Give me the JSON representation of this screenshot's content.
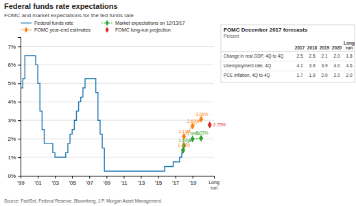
{
  "chart_data": [
    {
      "type": "line",
      "title": "Federal funds rate expectations",
      "subtitle": "FOMC and market expectations for the fed funds rate",
      "source": "Source: FactSet, Federal Reserve, Bloomberg, J.P. Morgan Asset Management.",
      "xlim": [
        1999,
        2021.5
      ],
      "ylim": [
        0,
        0.075
      ],
      "xticks": [
        {
          "value": 1999,
          "label": "'99"
        },
        {
          "value": 2001,
          "label": "'01"
        },
        {
          "value": 2003,
          "label": "'03"
        },
        {
          "value": 2005,
          "label": "'05"
        },
        {
          "value": 2007,
          "label": "'07"
        },
        {
          "value": 2009,
          "label": "'09"
        },
        {
          "value": 2011,
          "label": "'11"
        },
        {
          "value": 2013,
          "label": "'13"
        },
        {
          "value": 2015,
          "label": "'15"
        },
        {
          "value": 2017,
          "label": "'17"
        },
        {
          "value": 2019,
          "label": "'19"
        }
      ],
      "yticks": [
        {
          "value": 0,
          "label": "0%"
        },
        {
          "value": 0.01,
          "label": "1%"
        },
        {
          "value": 0.02,
          "label": "2%"
        },
        {
          "value": 0.03,
          "label": "3%"
        },
        {
          "value": 0.04,
          "label": "4%"
        },
        {
          "value": 0.05,
          "label": "5%"
        },
        {
          "value": 0.06,
          "label": "6%"
        },
        {
          "value": 0.07,
          "label": "7%"
        }
      ],
      "grid": true,
      "legend": "upper left",
      "data_labels": true,
      "annotations": [
        {
          "text": "Long\nrun",
          "x": 2021.5
        }
      ],
      "series": [
        {
          "name": "Federal funds rate",
          "type": "step",
          "line_style": "solid",
          "x": [
            1999,
            1999.25,
            1999.5,
            1999.75,
            2000,
            2000.25,
            2000.5,
            2000.75,
            2001,
            2001.25,
            2001.5,
            2001.75,
            2002,
            2002.25,
            2002.5,
            2002.75,
            2003,
            2003.25,
            2003.5,
            2003.75,
            2004,
            2004.25,
            2004.5,
            2004.75,
            2005,
            2005.25,
            2005.5,
            2005.75,
            2006,
            2006.25,
            2006.5,
            2006.75,
            2007,
            2007.25,
            2007.5,
            2007.75,
            2008,
            2008.25,
            2008.5,
            2008.75,
            2009,
            2009.25,
            2009.5,
            2009.75,
            2010,
            2010.25,
            2010.5,
            2010.75,
            2011,
            2011.25,
            2011.5,
            2011.75,
            2012,
            2012.25,
            2012.5,
            2012.75,
            2013,
            2013.25,
            2013.5,
            2013.75,
            2014,
            2014.25,
            2014.5,
            2014.75,
            2015,
            2015.25,
            2015.5,
            2015.75,
            2016,
            2016.25,
            2016.5,
            2016.75,
            2017,
            2017.25,
            2017.5,
            2017.75,
            2017.9
          ],
          "values": [
            0.0475,
            0.0525,
            0.065,
            0.065,
            0.065,
            0.065,
            0.065,
            0.06,
            0.05,
            0.035,
            0.025,
            0.0175,
            0.0175,
            0.0175,
            0.0175,
            0.0125,
            0.01,
            0.01,
            0.01,
            0.01,
            0.01,
            0.0125,
            0.0175,
            0.0225,
            0.025,
            0.03,
            0.035,
            0.04,
            0.0425,
            0.0475,
            0.0525,
            0.0525,
            0.0525,
            0.0525,
            0.0525,
            0.045,
            0.03,
            0.0225,
            0.015,
            0.0025,
            0.0025,
            0.0025,
            0.0025,
            0.0025,
            0.0025,
            0.0025,
            0.0025,
            0.0025,
            0.0025,
            0.0025,
            0.0025,
            0.0025,
            0.0025,
            0.0025,
            0.0025,
            0.0025,
            0.0025,
            0.0025,
            0.0025,
            0.0025,
            0.0025,
            0.0025,
            0.0025,
            0.0025,
            0.0025,
            0.0025,
            0.0025,
            0.005,
            0.005,
            0.005,
            0.005,
            0.0075,
            0.0075,
            0.0075,
            0.01,
            0.0125,
            0.0138
          ]
        },
        {
          "name": "FOMC year-end estimates",
          "type": "line",
          "line_style": "dotted",
          "marker": "diamond",
          "x": [
            2017.9,
            2018,
            2019,
            2020
          ],
          "values": [
            0.0138,
            0.0213,
            0.0269,
            0.0306
          ],
          "value_labels": [
            "1.38%",
            "2.13%",
            "2.69%",
            "3.06%"
          ]
        },
        {
          "name": "Market expectations on 12/13/17",
          "type": "line",
          "line_style": "dotted",
          "marker": "diamond",
          "x": [
            2017.9,
            2018,
            2019,
            2020
          ],
          "values": [
            0.0138,
            0.0163,
            0.0199,
            0.0203
          ],
          "value_labels": [
            null,
            "1.63%",
            "1.99%",
            "2.03%"
          ]
        },
        {
          "name": "FOMC long-run projection",
          "type": "scatter",
          "marker": "diamond",
          "x": [
            2021
          ],
          "values": [
            0.0275
          ],
          "value_labels": [
            "2.75%"
          ]
        }
      ]
    },
    {
      "type": "table",
      "title": "FOMC December 2017 forecasts",
      "subtitle": "Percent",
      "columns": [
        "2017",
        "2018",
        "2019",
        "2020",
        "Long\nrun"
      ],
      "rows": [
        {
          "name": "Change in real GDP, 4Q to 4Q",
          "values": [
            2.5,
            2.5,
            2.1,
            2.0,
            1.8
          ],
          "value_labels": [
            "2.5",
            "2.5",
            "2.1",
            "2.0",
            "1.8"
          ]
        },
        {
          "name": "Unemployment rate, 4Q",
          "values": [
            4.1,
            3.9,
            3.9,
            4.0,
            4.6
          ],
          "value_labels": [
            "4.1",
            "3.9",
            "3.9",
            "4.0",
            "4.6"
          ]
        },
        {
          "name": "PCE inflation, 4Q to 4Q",
          "values": [
            1.7,
            1.9,
            2.0,
            2.0,
            2.0
          ],
          "value_labels": [
            "1.7",
            "1.9",
            "2.0",
            "2.0",
            "2.0"
          ]
        }
      ]
    }
  ]
}
